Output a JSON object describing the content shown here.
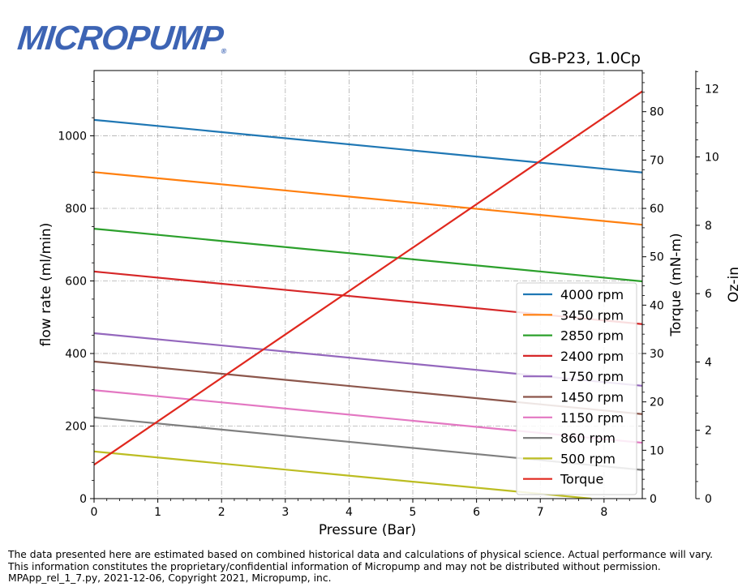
{
  "logo": {
    "text": "MICROPUMP",
    "mark": "®"
  },
  "chart_data": {
    "type": "line",
    "title": "GB-P23,  1.0Cp",
    "xlabel": "Pressure (Bar)",
    "ylabel": "flow rate (ml/min)",
    "y2label": "Torque (mN-m)",
    "y3label": "Oz-in",
    "xlim": [
      0,
      8.6
    ],
    "ylim": [
      0,
      1180
    ],
    "y2lim": [
      0,
      88.5
    ],
    "y3lim": [
      0,
      12.53
    ],
    "x_ticks": [
      0,
      1,
      2,
      3,
      4,
      5,
      6,
      7,
      8
    ],
    "y_ticks": [
      0,
      200,
      400,
      600,
      800,
      1000
    ],
    "y2_ticks": [
      0,
      10,
      20,
      30,
      40,
      50,
      60,
      70,
      80
    ],
    "y3_ticks": [
      0,
      2,
      4,
      6,
      8,
      10,
      12
    ],
    "grid": true,
    "legend_position": "lower-right",
    "series": [
      {
        "name": "4000 rpm",
        "color": "#1f77b4",
        "axis": "flow",
        "x": [
          0,
          8.6
        ],
        "y": [
          1044,
          899
        ]
      },
      {
        "name": "3450 rpm",
        "color": "#ff7f0e",
        "axis": "flow",
        "x": [
          0,
          8.6
        ],
        "y": [
          900,
          755
        ]
      },
      {
        "name": "2850 rpm",
        "color": "#2ca02c",
        "axis": "flow",
        "x": [
          0,
          8.6
        ],
        "y": [
          744,
          599
        ]
      },
      {
        "name": "2400 rpm",
        "color": "#d62728",
        "axis": "flow",
        "x": [
          0,
          8.6
        ],
        "y": [
          626,
          481
        ]
      },
      {
        "name": "1750 rpm",
        "color": "#9467bd",
        "axis": "flow",
        "x": [
          0,
          8.6
        ],
        "y": [
          456,
          311
        ]
      },
      {
        "name": "1450 rpm",
        "color": "#8c564b",
        "axis": "flow",
        "x": [
          0,
          8.6
        ],
        "y": [
          378,
          233
        ]
      },
      {
        "name": "1150 rpm",
        "color": "#e377c2",
        "axis": "flow",
        "x": [
          0,
          8.6
        ],
        "y": [
          299,
          154
        ]
      },
      {
        "name": "860 rpm",
        "color": "#7f7f7f",
        "axis": "flow",
        "x": [
          0,
          8.6
        ],
        "y": [
          224,
          79
        ]
      },
      {
        "name": "500 rpm",
        "color": "#bcbd22",
        "axis": "flow",
        "x": [
          0,
          7.8
        ],
        "y": [
          130,
          0
        ]
      },
      {
        "name": "Torque",
        "color": "#e0281e",
        "axis": "torque",
        "x": [
          0,
          8.6
        ],
        "y": [
          7.0,
          84.2
        ]
      }
    ]
  },
  "footer": {
    "line1": "The data presented here are estimated based on combined historical data and calculations of physical science.  Actual performance will vary.",
    "line2": "This information constitutes the proprietary/confidential information of Micropump and may not be distributed without permission.",
    "line3": "MPApp_rel_1_7.py, 2021-12-06, Copyright 2021, Micropump, inc."
  }
}
